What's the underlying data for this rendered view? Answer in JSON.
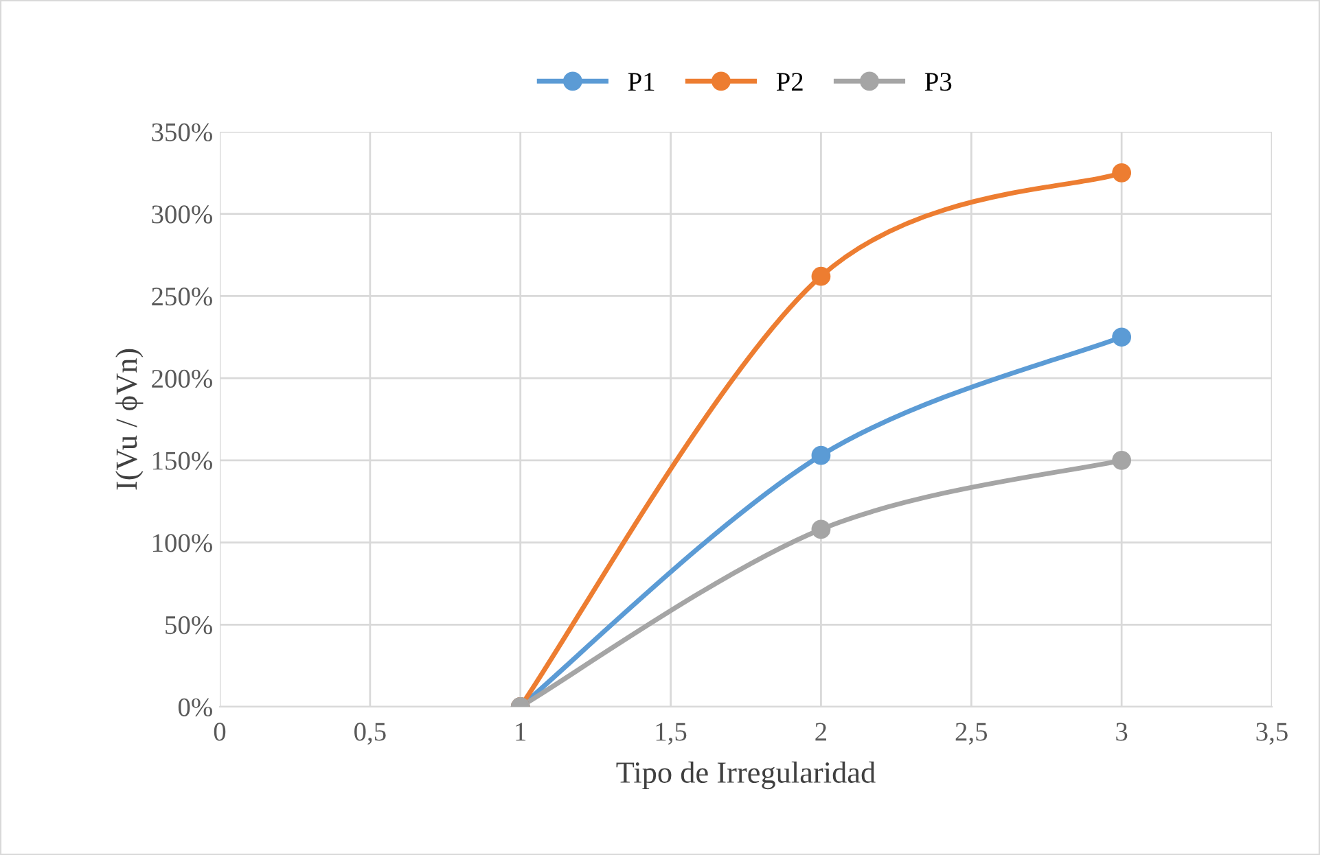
{
  "chart_data": {
    "type": "line",
    "xlabel": "Tipo de Irregularidad",
    "ylabel": "I(Vu / ϕVn)",
    "x": [
      1,
      2,
      3
    ],
    "series": [
      {
        "name": "P1",
        "color": "#5b9bd5",
        "values": [
          0,
          153,
          225
        ]
      },
      {
        "name": "P2",
        "color": "#ed7d31",
        "values": [
          0,
          262,
          325
        ]
      },
      {
        "name": "P3",
        "color": "#a5a5a5",
        "values": [
          0,
          108,
          150
        ]
      }
    ],
    "xlim": [
      0,
      3.5
    ],
    "xticks": [
      0,
      {
        "value": 0.5,
        "label": "0,5"
      },
      1,
      {
        "value": 1.5,
        "label": "1,5"
      },
      2,
      {
        "value": 2.5,
        "label": "2,5"
      },
      3,
      {
        "value": 3.5,
        "label": "3,5"
      }
    ],
    "ylim": [
      0,
      350
    ],
    "yticks": [
      {
        "value": 0,
        "label": "0%"
      },
      {
        "value": 50,
        "label": "50%"
      },
      {
        "value": 100,
        "label": "100%"
      },
      {
        "value": 150,
        "label": "150%"
      },
      {
        "value": 200,
        "label": "200%"
      },
      {
        "value": 250,
        "label": "250%"
      },
      {
        "value": 300,
        "label": "300%"
      },
      {
        "value": 350,
        "label": "350%"
      }
    ],
    "grid": true,
    "legend": "top",
    "marker": "circle",
    "line_style": "solid"
  }
}
